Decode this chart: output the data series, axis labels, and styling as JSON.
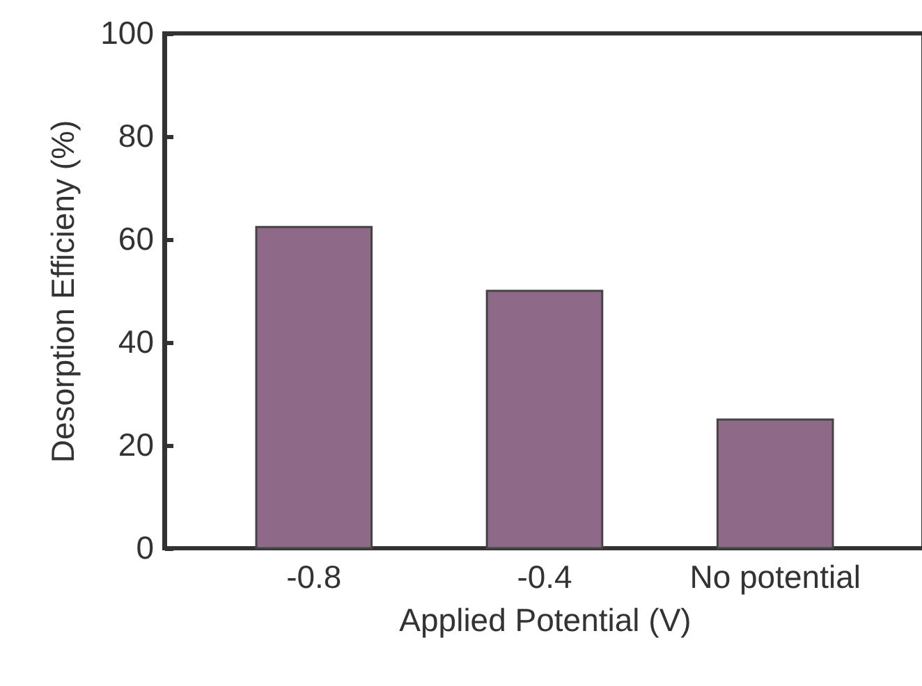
{
  "chart_data": {
    "type": "bar",
    "xlabel": "Applied Potential (V)",
    "ylabel": "Desorption Efficieny (%)",
    "categories": [
      "-0.8",
      "-0.4",
      "No potential"
    ],
    "values": [
      62.4,
      50,
      25
    ],
    "color": "#8e6a88",
    "ylim": [
      0,
      100
    ],
    "yticks": [
      0,
      20,
      40,
      60,
      80,
      100
    ],
    "grid": false
  }
}
